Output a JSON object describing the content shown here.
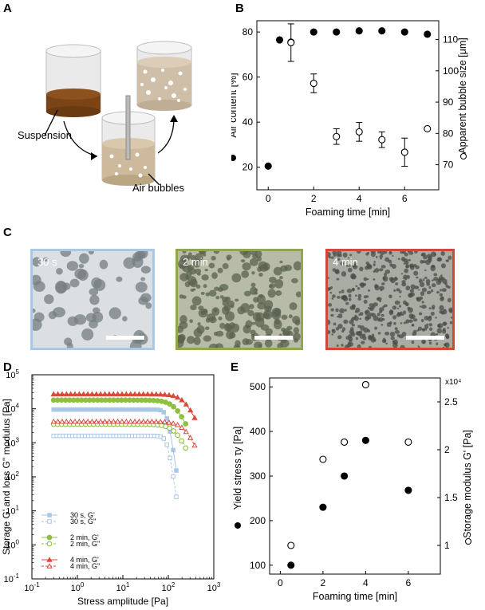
{
  "panels": {
    "a": {
      "label": "A",
      "suspension": "Suspension",
      "air_bubbles": "Air bubbles"
    },
    "b": {
      "label": "B"
    },
    "c": {
      "label": "C",
      "images": [
        {
          "time": "30 s",
          "border": "#a9c7e8"
        },
        {
          "time": "2 min",
          "border": "#8fa84e"
        },
        {
          "time": "4 min",
          "border": "#cf4a36"
        }
      ]
    },
    "d": {
      "label": "D"
    },
    "e": {
      "label": "E"
    }
  },
  "chart_data": [
    {
      "id": "B",
      "type": "scatter",
      "xlabel": "Foaming time [min]",
      "ylabel": "Air content [%]",
      "ylabel_right": "Apparent bubble size [μm]",
      "xlim": [
        -0.5,
        7.5
      ],
      "ylim": [
        10,
        85
      ],
      "ylim_right": [
        62,
        116
      ],
      "xticks": [
        "0",
        "2",
        "4",
        "6"
      ],
      "yticks": [
        "20",
        "40",
        "60",
        "80"
      ],
      "yticks_right": [
        "70",
        "80",
        "90",
        "100",
        "110"
      ],
      "series": [
        {
          "axis": "left",
          "marker": "filled-circle",
          "x": [
            0,
            0.5,
            1,
            2,
            3,
            4,
            5,
            6,
            7
          ],
          "y": [
            20.5,
            76.5,
            75.5,
            80,
            80,
            80.5,
            80.5,
            80,
            79
          ]
        },
        {
          "axis": "right",
          "marker": "open-circle",
          "x": [
            1,
            2,
            3,
            4,
            5,
            6,
            7
          ],
          "y": [
            109,
            96,
            79,
            80.5,
            78,
            74,
            81.5
          ],
          "yerr": [
            6,
            3,
            2.5,
            3,
            2.5,
            4.5,
            0
          ]
        }
      ]
    },
    {
      "id": "D",
      "type": "line",
      "scale": "log-log",
      "xlabel": "Stress amplitude [Pa]",
      "ylabel": "Storage G' and loss G'' modulus [Pa]",
      "xlim": [
        0.1,
        1000
      ],
      "ylim": [
        0.1,
        100000
      ],
      "xticks": [
        "10^-1",
        "10^0",
        "10^1",
        "10^2",
        "10^3"
      ],
      "yticks": [
        "10^-1",
        "10^0",
        "10^1",
        "10^2",
        "10^3",
        "10^4",
        "10^5"
      ],
      "series": [
        {
          "name": "30 s, G'",
          "color": "#a9c7e8",
          "marker": "filled-square",
          "plateau": 9500,
          "end": 150,
          "drop": true
        },
        {
          "name": "30 s, G''",
          "color": "#a9c7e8",
          "marker": "open-square",
          "plateau": 1600,
          "end": 150,
          "drop": true
        },
        {
          "name": "2 min, G'",
          "color": "#8fbf3f",
          "marker": "filled-circle",
          "plateau": 18000,
          "end": 240
        },
        {
          "name": "2 min, G''",
          "color": "#8fbf3f",
          "marker": "open-circle",
          "plateau": 3500,
          "end": 240
        },
        {
          "name": "4 min, G'",
          "color": "#d94a3a",
          "marker": "filled-triangle",
          "plateau": 27000,
          "end": 380
        },
        {
          "name": "4 min, G''",
          "color": "#d94a3a",
          "marker": "open-triangle",
          "plateau": 4200,
          "end": 380
        }
      ]
    },
    {
      "id": "E",
      "type": "scatter",
      "xlabel": "Foaming time [min]",
      "ylabel": "Yield stress τy [Pa]",
      "ylabel_right": "Storage modulus G' [Pa]",
      "right_multiplier": "x10⁴",
      "xlim": [
        -0.5,
        7.5
      ],
      "ylim": [
        80,
        520
      ],
      "ylim_right": [
        0.7,
        2.75
      ],
      "xticks": [
        "0",
        "2",
        "4",
        "6"
      ],
      "yticks": [
        "100",
        "200",
        "300",
        "400",
        "500"
      ],
      "yticks_right": [
        "1",
        "1.5",
        "2",
        "2.5"
      ],
      "series": [
        {
          "axis": "left",
          "marker": "filled-circle",
          "x": [
            0.5,
            2,
            3,
            4,
            6
          ],
          "y": [
            100,
            230,
            300,
            380,
            268
          ]
        },
        {
          "axis": "right",
          "marker": "open-circle",
          "x": [
            0.5,
            2,
            3,
            4,
            6
          ],
          "y": [
            1,
            1.9,
            2.08,
            2.68,
            2.08
          ]
        }
      ]
    }
  ]
}
